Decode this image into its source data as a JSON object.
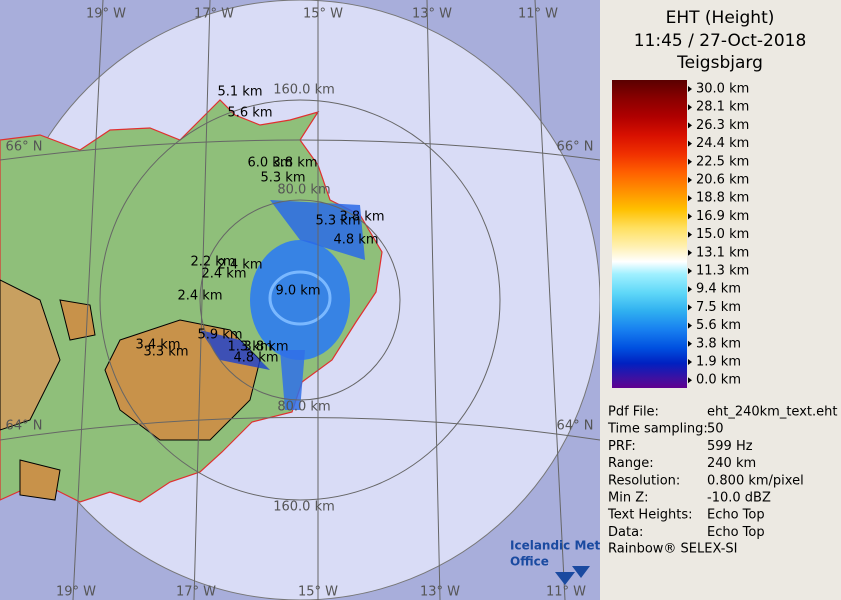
{
  "map": {
    "longitude_labels_top": [
      "19° W",
      "17° W",
      "15° W",
      "13° W",
      "11° W"
    ],
    "longitude_labels_bottom": [
      "19° W",
      "17° W",
      "15° W",
      "13° W",
      "11° W"
    ],
    "latitude_labels_left": [
      "66° N",
      "64° N"
    ],
    "latitude_labels_right": [
      "66° N",
      "64° N"
    ],
    "range_labels": [
      "160.0 km",
      "80.0 km",
      "80.0 km",
      "160.0 km"
    ],
    "echo_top_labels": [
      "5.1 km",
      "5.6 km",
      "6.0 km",
      "3.8 km",
      "5.3 km",
      "5.3 km",
      "3.8 km",
      "4.8 km",
      "2.2 km",
      "2.4 km",
      "2.4 km",
      "9.0 km",
      "2.4 km",
      "5.9 km",
      "3.4 km",
      "3.3 km",
      "1.3 km",
      "3.8 km",
      "4.8 km"
    ]
  },
  "header": {
    "title": "EHT (Height)",
    "time": "11:45 / 27-Oct-2018",
    "station": "Teigsbjarg"
  },
  "legend": {
    "labels": [
      "30.0 km",
      "28.1 km",
      "26.3 km",
      "24.4 km",
      "22.5 km",
      "20.6 km",
      "18.8 km",
      "16.9 km",
      "15.0 km",
      "13.1 km",
      "11.3 km",
      "9.4 km",
      "7.5 km",
      "5.6 km",
      "3.8 km",
      "1.9 km",
      "0.0 km"
    ]
  },
  "info": {
    "rows": [
      [
        "Pdf File:",
        "eht_240km_text.eht"
      ],
      [
        "Time sampling:",
        "50"
      ],
      [
        "PRF:",
        "599 Hz"
      ],
      [
        "Range:",
        "240 km"
      ],
      [
        "Resolution:",
        "0.800 km/pixel"
      ],
      [
        "Min Z:",
        "-10.0 dBZ"
      ],
      [
        "Text Heights:",
        "Echo Top"
      ],
      [
        "Data:",
        "Echo Top"
      ]
    ],
    "footer": "Rainbow® SELEX-SI"
  },
  "logo": {
    "line1": "Icelandic Met",
    "line2": "Office"
  }
}
